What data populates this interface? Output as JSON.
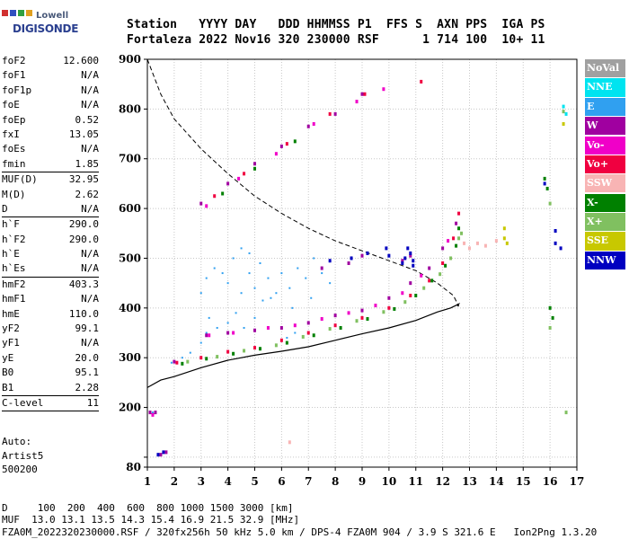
{
  "logo": {
    "top": "Lowell",
    "bottom": "DIGISONDE"
  },
  "header": {
    "line1": "Station   YYYY DAY   DDD HHMMSS P1  FFS S  AXN PPS  IGA PS",
    "line2": "Fortaleza 2022 Nov16 320 230000 RSF      1 714 100  10+ 11"
  },
  "params": [
    {
      "name": "foF2",
      "value": "12.600",
      "sep": false
    },
    {
      "name": "foF1",
      "value": "N/A",
      "sep": false
    },
    {
      "name": "foF1p",
      "value": "N/A",
      "sep": false
    },
    {
      "name": "foE",
      "value": "N/A",
      "sep": false
    },
    {
      "name": "foEp",
      "value": "0.52",
      "sep": false
    },
    {
      "name": "fxI",
      "value": "13.05",
      "sep": false
    },
    {
      "name": "foEs",
      "value": "N/A",
      "sep": false
    },
    {
      "name": "fmin",
      "value": "1.85",
      "sep": true
    },
    {
      "name": "MUF(D)",
      "value": "32.95",
      "sep": false
    },
    {
      "name": "M(D)",
      "value": "2.62",
      "sep": false
    },
    {
      "name": "D",
      "value": "N/A",
      "sep": true
    },
    {
      "name": "h`F",
      "value": "290.0",
      "sep": false
    },
    {
      "name": "h`F2",
      "value": "290.0",
      "sep": false
    },
    {
      "name": "h`E",
      "value": "N/A",
      "sep": false
    },
    {
      "name": "h`Es",
      "value": "N/A",
      "sep": true
    },
    {
      "name": "hmF2",
      "value": "403.3",
      "sep": false
    },
    {
      "name": "hmF1",
      "value": "N/A",
      "sep": false
    },
    {
      "name": "hmE",
      "value": "110.0",
      "sep": false
    },
    {
      "name": "yF2",
      "value": "99.1",
      "sep": false
    },
    {
      "name": "yF1",
      "value": "N/A",
      "sep": false
    },
    {
      "name": "yE",
      "value": "20.0",
      "sep": false
    },
    {
      "name": "B0",
      "value": "95.1",
      "sep": false
    },
    {
      "name": "B1",
      "value": "2.28",
      "sep": true
    },
    {
      "name": "C-level",
      "value": "11",
      "sep": true
    }
  ],
  "auto": {
    "line1": "Auto:",
    "line2": "Artist5",
    "line3": "500200"
  },
  "legend": [
    {
      "label": "NoVal",
      "color": "#a0a0a0"
    },
    {
      "label": "NNE",
      "color": "#00e4f0"
    },
    {
      "label": "E",
      "color": "#30a0f0"
    },
    {
      "label": "W",
      "color": "#a000a0"
    },
    {
      "label": "Vo-",
      "color": "#f000c8"
    },
    {
      "label": "Vo+",
      "color": "#f00040"
    },
    {
      "label": "SSW",
      "color": "#f8b4b4"
    },
    {
      "label": "X-",
      "color": "#008000"
    },
    {
      "label": "X+",
      "color": "#80c060"
    },
    {
      "label": "SSE",
      "color": "#c8c800"
    },
    {
      "label": "NNW",
      "color": "#0000c0"
    }
  ],
  "footer": {
    "line1": "D     100  200  400  600  800 1000 1500 3000 [km]",
    "line2": "MUF  13.0 13.1 13.5 14.3 15.4 16.9 21.5 32.9 [MHz]",
    "line3": "FZA0M_2022320230000.RSF / 320fx256h 50 kHz 5.0 km / DPS-4 FZA0M 904 / 3.9 S 321.6 E   Ion2Png 1.3.20"
  },
  "chart_data": {
    "type": "scatter",
    "xlim": [
      1,
      17
    ],
    "ylim": [
      80,
      900
    ],
    "xticks": [
      1,
      2,
      3,
      4,
      5,
      6,
      7,
      8,
      9,
      10,
      11,
      12,
      13,
      14,
      15,
      16,
      17
    ],
    "yticks": [
      80,
      100,
      200,
      300,
      400,
      500,
      600,
      700,
      800,
      900
    ],
    "ytick_labels": [
      "80",
      "",
      "200",
      "300",
      "400",
      "500",
      "600",
      "700",
      "800",
      "900"
    ],
    "grid": true,
    "series": [
      {
        "color": "#30a0f0",
        "style": "dots",
        "points": [
          [
            3.0,
            430
          ],
          [
            3.2,
            460
          ],
          [
            3.5,
            480
          ],
          [
            3.8,
            470
          ],
          [
            4.0,
            450
          ],
          [
            4.2,
            500
          ],
          [
            4.5,
            430
          ],
          [
            4.8,
            470
          ],
          [
            5.0,
            440
          ],
          [
            5.2,
            490
          ],
          [
            5.5,
            460
          ],
          [
            5.8,
            430
          ],
          [
            6.0,
            470
          ],
          [
            6.3,
            440
          ],
          [
            6.6,
            480
          ],
          [
            6.9,
            460
          ],
          [
            7.2,
            500
          ],
          [
            7.5,
            470
          ],
          [
            7.8,
            450
          ],
          [
            3.3,
            380
          ],
          [
            3.6,
            360
          ],
          [
            4.0,
            370
          ],
          [
            4.3,
            390
          ],
          [
            4.6,
            360
          ],
          [
            5.0,
            380
          ],
          [
            3.2,
            350
          ],
          [
            3.0,
            330
          ],
          [
            2.6,
            310
          ],
          [
            2.3,
            300
          ],
          [
            1.9,
            290
          ],
          [
            1.2,
            190
          ],
          [
            6.2,
            340
          ],
          [
            6.5,
            350
          ],
          [
            4.5,
            520
          ],
          [
            4.8,
            510
          ],
          [
            5.3,
            415
          ],
          [
            5.6,
            420
          ],
          [
            6.4,
            400
          ],
          [
            7.1,
            420
          ]
        ]
      },
      {
        "color": "#a000a0",
        "style": "points",
        "points": [
          [
            3.2,
            345
          ],
          [
            4.0,
            350
          ],
          [
            5.0,
            355
          ],
          [
            6.0,
            360
          ],
          [
            7.0,
            370
          ],
          [
            8.0,
            385
          ],
          [
            9.0,
            395
          ],
          [
            10.0,
            420
          ],
          [
            10.8,
            450
          ],
          [
            11.5,
            480
          ],
          [
            12.0,
            520
          ],
          [
            12.5,
            570
          ],
          [
            2.0,
            292
          ],
          [
            3.0,
            610
          ],
          [
            4.0,
            650
          ],
          [
            5.0,
            690
          ],
          [
            6.0,
            725
          ],
          [
            7.0,
            765
          ],
          [
            8.0,
            790
          ],
          [
            9.0,
            830
          ],
          [
            10.8,
            505
          ],
          [
            10.5,
            495
          ],
          [
            1.1,
            190
          ],
          [
            1.3,
            190
          ],
          [
            1.5,
            105
          ],
          [
            1.7,
            110
          ],
          [
            8.5,
            490
          ],
          [
            9.0,
            505
          ],
          [
            7.5,
            480
          ]
        ]
      },
      {
        "color": "#f000c8",
        "style": "points",
        "points": [
          [
            3.3,
            345
          ],
          [
            4.2,
            350
          ],
          [
            5.5,
            360
          ],
          [
            6.5,
            365
          ],
          [
            7.5,
            378
          ],
          [
            8.5,
            390
          ],
          [
            9.5,
            405
          ],
          [
            10.5,
            430
          ],
          [
            11.2,
            465
          ],
          [
            12.2,
            535
          ],
          [
            3.2,
            605
          ],
          [
            4.4,
            660
          ],
          [
            5.8,
            710
          ],
          [
            7.2,
            770
          ],
          [
            8.8,
            815
          ],
          [
            9.8,
            840
          ],
          [
            1.2,
            185
          ]
        ]
      },
      {
        "color": "#f00040",
        "style": "points",
        "points": [
          [
            2.1,
            290
          ],
          [
            3.0,
            300
          ],
          [
            4.0,
            312
          ],
          [
            5.0,
            320
          ],
          [
            6.0,
            335
          ],
          [
            7.0,
            350
          ],
          [
            8.0,
            365
          ],
          [
            9.0,
            380
          ],
          [
            10.0,
            400
          ],
          [
            10.8,
            425
          ],
          [
            11.5,
            455
          ],
          [
            12.0,
            490
          ],
          [
            12.4,
            540
          ],
          [
            12.6,
            590
          ],
          [
            3.5,
            625
          ],
          [
            4.6,
            670
          ],
          [
            6.2,
            730
          ],
          [
            7.8,
            790
          ],
          [
            9.1,
            830
          ],
          [
            11.2,
            855
          ]
        ]
      },
      {
        "color": "#008000",
        "style": "points",
        "points": [
          [
            2.3,
            288
          ],
          [
            3.2,
            298
          ],
          [
            4.2,
            308
          ],
          [
            5.2,
            318
          ],
          [
            6.2,
            330
          ],
          [
            7.2,
            345
          ],
          [
            8.2,
            360
          ],
          [
            9.2,
            378
          ],
          [
            10.2,
            398
          ],
          [
            11.0,
            425
          ],
          [
            11.6,
            455
          ],
          [
            12.1,
            485
          ],
          [
            12.5,
            525
          ],
          [
            12.6,
            560
          ],
          [
            3.8,
            630
          ],
          [
            5.0,
            680
          ],
          [
            6.5,
            735
          ],
          [
            16.0,
            400
          ],
          [
            16.1,
            380
          ],
          [
            15.8,
            660
          ],
          [
            15.9,
            640
          ]
        ]
      },
      {
        "color": "#80c060",
        "style": "points",
        "points": [
          [
            2.5,
            292
          ],
          [
            3.6,
            302
          ],
          [
            4.6,
            314
          ],
          [
            5.8,
            325
          ],
          [
            6.8,
            342
          ],
          [
            7.8,
            358
          ],
          [
            8.8,
            374
          ],
          [
            9.8,
            392
          ],
          [
            10.6,
            412
          ],
          [
            11.3,
            440
          ],
          [
            11.9,
            468
          ],
          [
            12.3,
            500
          ],
          [
            12.6,
            540
          ],
          [
            12.7,
            550
          ],
          [
            16.0,
            360
          ],
          [
            16.5,
            795
          ],
          [
            16.6,
            190
          ],
          [
            16.0,
            610
          ]
        ]
      },
      {
        "color": "#f8b4b4",
        "style": "points",
        "points": [
          [
            12.8,
            530
          ],
          [
            13.0,
            520
          ],
          [
            13.3,
            530
          ],
          [
            13.6,
            525
          ],
          [
            14.0,
            535
          ],
          [
            6.3,
            130
          ]
        ]
      },
      {
        "color": "#c8c800",
        "style": "points",
        "points": [
          [
            14.3,
            540
          ],
          [
            14.3,
            560
          ],
          [
            14.4,
            530
          ],
          [
            16.5,
            770
          ]
        ]
      },
      {
        "color": "#0000c0",
        "style": "points",
        "points": [
          [
            10.6,
            500
          ],
          [
            10.8,
            510
          ],
          [
            10.5,
            490
          ],
          [
            10.9,
            495
          ],
          [
            10.7,
            520
          ],
          [
            10.9,
            485
          ],
          [
            16.2,
            530
          ],
          [
            15.8,
            650
          ],
          [
            16.2,
            555
          ],
          [
            16.4,
            520
          ],
          [
            9.9,
            520
          ],
          [
            10.0,
            505
          ],
          [
            8.6,
            500
          ],
          [
            9.2,
            510
          ],
          [
            7.8,
            495
          ],
          [
            1.4,
            105
          ],
          [
            1.6,
            110
          ]
        ]
      },
      {
        "color": "#00e4f0",
        "style": "points",
        "points": [
          [
            16.5,
            805
          ],
          [
            16.6,
            790
          ]
        ]
      }
    ],
    "profile_solid": [
      [
        1,
        240
      ],
      [
        1.5,
        255
      ],
      [
        2,
        262
      ],
      [
        3,
        280
      ],
      [
        4,
        295
      ],
      [
        5,
        305
      ],
      [
        6,
        313
      ],
      [
        7,
        322
      ],
      [
        8,
        335
      ],
      [
        9,
        348
      ],
      [
        10,
        360
      ],
      [
        11,
        375
      ],
      [
        11.8,
        392
      ],
      [
        12.3,
        400
      ],
      [
        12.6,
        408
      ],
      [
        12.55,
        403.3
      ]
    ],
    "profile_dashed": [
      [
        1,
        900
      ],
      [
        1.5,
        830
      ],
      [
        2,
        780
      ],
      [
        3,
        720
      ],
      [
        4,
        670
      ],
      [
        5,
        625
      ],
      [
        6,
        590
      ],
      [
        7,
        560
      ],
      [
        8,
        535
      ],
      [
        9,
        515
      ],
      [
        10,
        495
      ],
      [
        11,
        475
      ],
      [
        11.8,
        450
      ],
      [
        12.4,
        425
      ],
      [
        12.6,
        403.3
      ]
    ]
  }
}
